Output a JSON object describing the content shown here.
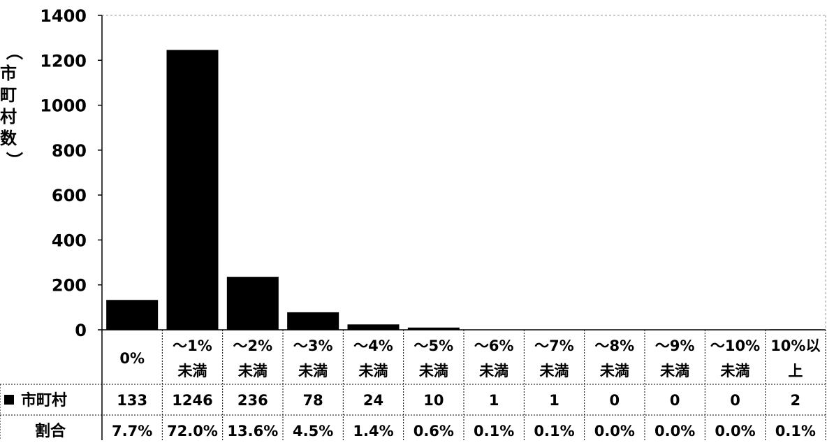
{
  "chart_data": {
    "type": "bar",
    "ylabel": "（市町村数）",
    "ylim": [
      0,
      1400
    ],
    "yticks": [
      0,
      200,
      400,
      600,
      800,
      1000,
      1200,
      1400
    ],
    "grid": false,
    "bar_color": "#000000",
    "categories": [
      [
        "0%"
      ],
      [
        "～1%",
        "未満"
      ],
      [
        "～2%",
        "未満"
      ],
      [
        "～3%",
        "未満"
      ],
      [
        "～4%",
        "未満"
      ],
      [
        "～5%",
        "未満"
      ],
      [
        "～6%",
        "未満"
      ],
      [
        "～7%",
        "未満"
      ],
      [
        "～8%",
        "未満"
      ],
      [
        "～9%",
        "未満"
      ],
      [
        "～10%",
        "未満"
      ],
      [
        "10%以",
        "上"
      ]
    ],
    "series": [
      {
        "name": "市町村",
        "values": [
          133,
          1246,
          236,
          78,
          24,
          10,
          1,
          1,
          0,
          0,
          0,
          2
        ]
      }
    ],
    "table_rows": [
      {
        "label": "市町村",
        "legend_marker": true,
        "cells": [
          "133",
          "1246",
          "236",
          "78",
          "24",
          "10",
          "1",
          "1",
          "0",
          "0",
          "0",
          "2"
        ]
      },
      {
        "label": "割合",
        "legend_marker": false,
        "cells": [
          "7.7%",
          "72.0%",
          "13.6%",
          "4.5%",
          "1.4%",
          "0.6%",
          "0.1%",
          "0.1%",
          "0.0%",
          "0.0%",
          "0.0%",
          "0.1%"
        ]
      }
    ]
  }
}
